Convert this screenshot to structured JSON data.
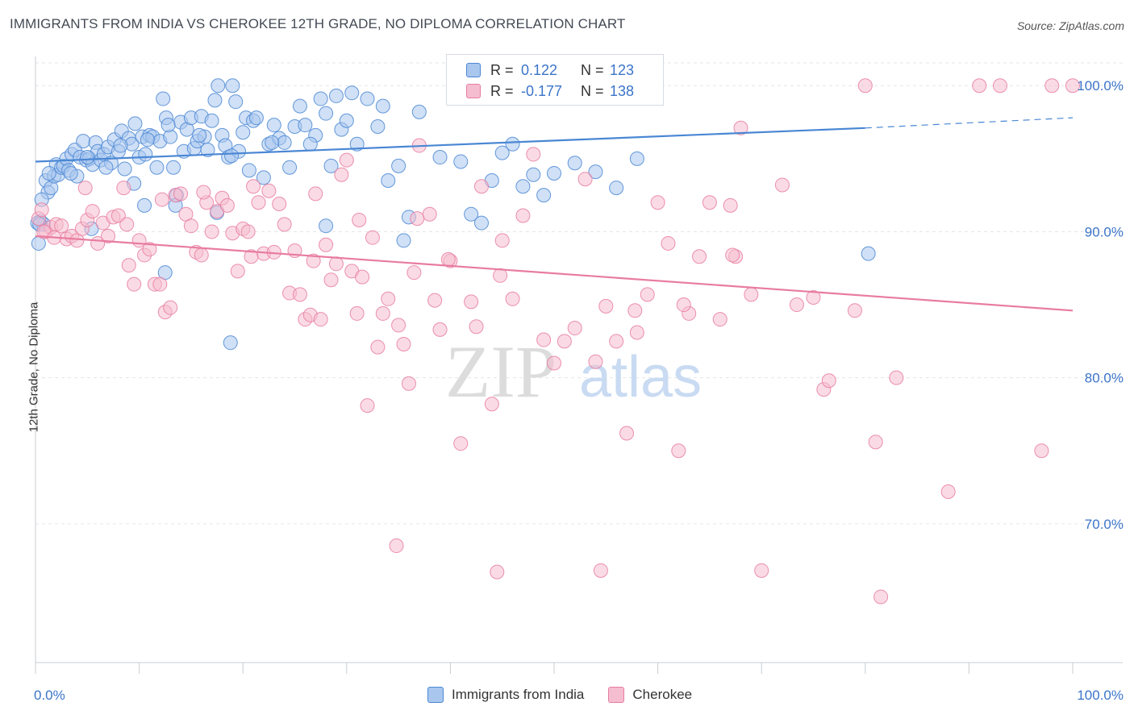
{
  "title": "IMMIGRANTS FROM INDIA VS CHEROKEE 12TH GRADE, NO DIPLOMA CORRELATION CHART",
  "source": "Source: ZipAtlas.com",
  "watermark": {
    "zip": "ZIP",
    "atlas": "atlas"
  },
  "legend": {
    "series": [
      {
        "name": "Immigrants from India",
        "r_label": "R =",
        "r_value": "0.122",
        "n_label": "N =",
        "n_value": "123",
        "color": "#4a87d4"
      },
      {
        "name": "Cherokee",
        "r_label": "R =",
        "r_value": "-0.177",
        "n_label": "N =",
        "n_value": "138",
        "color": "#e87ca0"
      }
    ]
  },
  "chart_data": {
    "type": "scatter",
    "title": "IMMIGRANTS FROM INDIA VS CHEROKEE 12TH GRADE, NO DIPLOMA CORRELATION CHART",
    "xlabel": "",
    "ylabel": "12th Grade, No Diploma",
    "x_tick_labels": [
      "0.0%",
      "100.0%"
    ],
    "y_tick_labels": [
      "100.0%",
      "90.0%",
      "80.0%",
      "70.0%"
    ],
    "y_ticks": [
      100,
      90,
      80,
      70
    ],
    "xlim": [
      0,
      100
    ],
    "ylim": [
      60.5,
      102
    ],
    "grid": true,
    "legend_position": "top-center",
    "series": [
      {
        "name": "Immigrants from India",
        "color": "#4a87d4",
        "fill": "#a9c7ee",
        "trend": {
          "x": [
            0,
            80
          ],
          "y": [
            94.8,
            97.1
          ],
          "dashed_to": [
            100,
            97.8
          ]
        },
        "points": [
          [
            0.3,
            89.2
          ],
          [
            0.5,
            90.7
          ],
          [
            0.8,
            90.5
          ],
          [
            1.0,
            93.5
          ],
          [
            1.2,
            92.7
          ],
          [
            1.5,
            93.0
          ],
          [
            1.8,
            93.8
          ],
          [
            2.0,
            94.6
          ],
          [
            2.2,
            93.9
          ],
          [
            2.5,
            94.4
          ],
          [
            2.7,
            94.5
          ],
          [
            3.0,
            95.0
          ],
          [
            3.2,
            94.2
          ],
          [
            3.5,
            95.3
          ],
          [
            3.8,
            95.6
          ],
          [
            4.0,
            93.8
          ],
          [
            4.3,
            95.1
          ],
          [
            4.6,
            96.2
          ],
          [
            4.9,
            94.9
          ],
          [
            5.2,
            95.0
          ],
          [
            5.5,
            94.6
          ],
          [
            5.8,
            96.1
          ],
          [
            6.0,
            95.5
          ],
          [
            6.3,
            94.9
          ],
          [
            6.6,
            95.3
          ],
          [
            7.0,
            95.8
          ],
          [
            7.3,
            94.7
          ],
          [
            7.6,
            96.3
          ],
          [
            8.0,
            95.5
          ],
          [
            8.3,
            96.9
          ],
          [
            8.6,
            94.3
          ],
          [
            9.0,
            96.4
          ],
          [
            9.3,
            96.0
          ],
          [
            9.6,
            97.4
          ],
          [
            10.0,
            95.1
          ],
          [
            10.3,
            96.5
          ],
          [
            10.6,
            95.3
          ],
          [
            11.0,
            96.6
          ],
          [
            11.3,
            96.5
          ],
          [
            11.7,
            94.4
          ],
          [
            12.0,
            96.2
          ],
          [
            12.3,
            99.1
          ],
          [
            12.6,
            97.8
          ],
          [
            13.0,
            96.5
          ],
          [
            13.3,
            94.4
          ],
          [
            13.6,
            92.5
          ],
          [
            14.0,
            97.5
          ],
          [
            14.3,
            95.5
          ],
          [
            14.6,
            97.0
          ],
          [
            15.0,
            97.8
          ],
          [
            15.3,
            95.7
          ],
          [
            15.6,
            96.2
          ],
          [
            16.0,
            97.9
          ],
          [
            16.3,
            96.5
          ],
          [
            16.6,
            95.6
          ],
          [
            17.0,
            97.6
          ],
          [
            17.3,
            99.0
          ],
          [
            17.6,
            100.0
          ],
          [
            18.0,
            96.6
          ],
          [
            18.3,
            95.9
          ],
          [
            18.6,
            95.1
          ],
          [
            19.0,
            100.0
          ],
          [
            19.3,
            98.9
          ],
          [
            19.6,
            95.5
          ],
          [
            20.0,
            96.8
          ],
          [
            20.3,
            97.8
          ],
          [
            20.6,
            94.2
          ],
          [
            21.0,
            97.6
          ],
          [
            21.3,
            97.8
          ],
          [
            22.0,
            93.7
          ],
          [
            22.5,
            96.0
          ],
          [
            23.0,
            97.3
          ],
          [
            23.5,
            96.4
          ],
          [
            24.0,
            96.1
          ],
          [
            24.5,
            94.4
          ],
          [
            25.0,
            97.2
          ],
          [
            25.5,
            98.6
          ],
          [
            26.0,
            97.3
          ],
          [
            27.0,
            96.6
          ],
          [
            27.5,
            99.1
          ],
          [
            28.0,
            98.1
          ],
          [
            28.5,
            94.5
          ],
          [
            29.0,
            99.3
          ],
          [
            29.5,
            97.0
          ],
          [
            30.0,
            97.6
          ],
          [
            30.5,
            99.5
          ],
          [
            31.0,
            96.0
          ],
          [
            32.0,
            99.1
          ],
          [
            33.0,
            97.2
          ],
          [
            33.5,
            98.6
          ],
          [
            34.0,
            93.5
          ],
          [
            35.0,
            94.5
          ],
          [
            35.5,
            89.4
          ],
          [
            36.0,
            91.0
          ],
          [
            37.0,
            98.2
          ],
          [
            39.0,
            95.1
          ],
          [
            41.0,
            94.8
          ],
          [
            42.0,
            91.2
          ],
          [
            43.0,
            90.6
          ],
          [
            44.0,
            93.5
          ],
          [
            45.0,
            95.4
          ],
          [
            46.0,
            96.0
          ],
          [
            47.0,
            93.1
          ],
          [
            48.0,
            93.9
          ],
          [
            49.0,
            92.5
          ],
          [
            50.0,
            94.0
          ],
          [
            52.0,
            94.7
          ],
          [
            54.0,
            94.1
          ],
          [
            56.0,
            93.0
          ],
          [
            58.0,
            95.0
          ],
          [
            9.5,
            93.3
          ],
          [
            10.5,
            91.8
          ],
          [
            12.5,
            87.2
          ],
          [
            13.5,
            91.8
          ],
          [
            17.5,
            91.3
          ],
          [
            18.8,
            82.4
          ],
          [
            28.0,
            90.4
          ],
          [
            0.2,
            90.6
          ],
          [
            0.6,
            92.2
          ],
          [
            1.3,
            94.0
          ],
          [
            3.4,
            94.0
          ],
          [
            5.0,
            95.1
          ],
          [
            6.8,
            94.4
          ],
          [
            8.2,
            95.9
          ],
          [
            10.8,
            96.3
          ],
          [
            12.8,
            97.3
          ],
          [
            15.8,
            96.6
          ],
          [
            18.9,
            95.2
          ],
          [
            22.8,
            96.1
          ],
          [
            26.5,
            96.0
          ],
          [
            80.3,
            88.5
          ],
          [
            5.4,
            90.2
          ],
          [
            0.4,
            90.5
          ]
        ]
      },
      {
        "name": "Cherokee",
        "color": "#e87ca0",
        "fill": "#f5bdd0",
        "trend": {
          "x": [
            0,
            100
          ],
          "y": [
            89.7,
            84.6
          ]
        },
        "points": [
          [
            0.3,
            90.9
          ],
          [
            0.6,
            91.5
          ],
          [
            1.0,
            90.0
          ],
          [
            1.5,
            90.3
          ],
          [
            2.0,
            90.5
          ],
          [
            2.5,
            90.4
          ],
          [
            3.0,
            89.5
          ],
          [
            3.5,
            89.7
          ],
          [
            4.0,
            89.4
          ],
          [
            4.5,
            90.2
          ],
          [
            5.0,
            90.8
          ],
          [
            5.5,
            91.4
          ],
          [
            6.0,
            89.2
          ],
          [
            6.5,
            90.6
          ],
          [
            7.0,
            89.7
          ],
          [
            7.5,
            91.0
          ],
          [
            8.0,
            91.1
          ],
          [
            8.5,
            93.0
          ],
          [
            9.0,
            87.7
          ],
          [
            9.5,
            86.4
          ],
          [
            10.0,
            89.4
          ],
          [
            10.5,
            88.4
          ],
          [
            11.0,
            88.8
          ],
          [
            11.5,
            86.4
          ],
          [
            12.0,
            86.4
          ],
          [
            12.5,
            84.5
          ],
          [
            13.0,
            84.8
          ],
          [
            13.5,
            92.5
          ],
          [
            14.0,
            92.6
          ],
          [
            14.5,
            91.2
          ],
          [
            15.0,
            90.4
          ],
          [
            15.5,
            88.6
          ],
          [
            16.0,
            88.4
          ],
          [
            16.5,
            92.0
          ],
          [
            17.0,
            90.0
          ],
          [
            17.5,
            91.4
          ],
          [
            18.0,
            92.3
          ],
          [
            18.5,
            91.8
          ],
          [
            19.0,
            89.9
          ],
          [
            19.5,
            87.3
          ],
          [
            20.0,
            90.2
          ],
          [
            20.5,
            90.0
          ],
          [
            21.0,
            93.1
          ],
          [
            21.5,
            92.0
          ],
          [
            22.0,
            88.5
          ],
          [
            22.5,
            92.8
          ],
          [
            23.0,
            88.6
          ],
          [
            23.5,
            91.9
          ],
          [
            24.0,
            90.5
          ],
          [
            24.5,
            85.8
          ],
          [
            25.0,
            88.7
          ],
          [
            25.5,
            85.7
          ],
          [
            26.0,
            84.0
          ],
          [
            26.5,
            84.3
          ],
          [
            27.0,
            92.6
          ],
          [
            27.5,
            84.0
          ],
          [
            28.0,
            89.1
          ],
          [
            28.5,
            86.7
          ],
          [
            29.0,
            87.8
          ],
          [
            29.5,
            93.9
          ],
          [
            30.0,
            94.9
          ],
          [
            30.5,
            87.3
          ],
          [
            31.0,
            84.4
          ],
          [
            31.5,
            86.9
          ],
          [
            32.0,
            78.1
          ],
          [
            32.5,
            89.6
          ],
          [
            33.0,
            82.1
          ],
          [
            33.5,
            84.4
          ],
          [
            34.0,
            85.4
          ],
          [
            35.0,
            83.6
          ],
          [
            35.5,
            82.3
          ],
          [
            36.0,
            79.6
          ],
          [
            36.5,
            87.2
          ],
          [
            37.0,
            95.9
          ],
          [
            38.0,
            91.2
          ],
          [
            38.5,
            85.3
          ],
          [
            39.0,
            83.3
          ],
          [
            40.0,
            88.0
          ],
          [
            41.0,
            75.5
          ],
          [
            42.0,
            85.2
          ],
          [
            42.5,
            83.5
          ],
          [
            43.0,
            93.1
          ],
          [
            44.0,
            78.2
          ],
          [
            45.0,
            89.4
          ],
          [
            46.0,
            85.4
          ],
          [
            47.0,
            91.1
          ],
          [
            48.0,
            95.3
          ],
          [
            49.0,
            82.6
          ],
          [
            50.0,
            81.0
          ],
          [
            51.0,
            82.5
          ],
          [
            52.0,
            83.4
          ],
          [
            53.0,
            93.6
          ],
          [
            54.0,
            81.1
          ],
          [
            54.5,
            66.8
          ],
          [
            55.0,
            84.9
          ],
          [
            56.0,
            82.5
          ],
          [
            57.0,
            76.2
          ],
          [
            58.0,
            83.1
          ],
          [
            59.0,
            85.7
          ],
          [
            60.0,
            92.0
          ],
          [
            61.0,
            89.2
          ],
          [
            62.0,
            75.0
          ],
          [
            63.0,
            84.4
          ],
          [
            64.0,
            88.3
          ],
          [
            65.0,
            92.0
          ],
          [
            66.0,
            84.0
          ],
          [
            67.0,
            91.8
          ],
          [
            68.0,
            97.1
          ],
          [
            69.0,
            85.7
          ],
          [
            70.0,
            66.8
          ],
          [
            72.0,
            93.2
          ],
          [
            75.0,
            85.5
          ],
          [
            76.0,
            79.2
          ],
          [
            76.5,
            79.8
          ],
          [
            79.0,
            84.6
          ],
          [
            80.0,
            100.0
          ],
          [
            81.0,
            75.6
          ],
          [
            81.5,
            65.0
          ],
          [
            88.0,
            72.2
          ],
          [
            91.0,
            100.0
          ],
          [
            93.0,
            100.0
          ],
          [
            97.0,
            75.0
          ],
          [
            98.0,
            100.0
          ],
          [
            100.0,
            100.0
          ],
          [
            34.8,
            68.5
          ],
          [
            44.5,
            66.7
          ],
          [
            50.2,
            100.0
          ],
          [
            53.0,
            100.0
          ],
          [
            62.5,
            85.0
          ],
          [
            67.5,
            88.3
          ],
          [
            0.8,
            90.0
          ],
          [
            1.8,
            89.6
          ],
          [
            4.8,
            93.0
          ],
          [
            8.8,
            90.5
          ],
          [
            12.2,
            92.2
          ],
          [
            16.2,
            92.7
          ],
          [
            20.8,
            88.3
          ],
          [
            26.8,
            88.0
          ],
          [
            31.2,
            90.8
          ],
          [
            36.8,
            90.9
          ],
          [
            39.8,
            88.1
          ],
          [
            44.8,
            87.0
          ],
          [
            57.8,
            84.6
          ],
          [
            67.2,
            88.4
          ],
          [
            73.4,
            85.0
          ],
          [
            83.0,
            80.0
          ]
        ]
      }
    ]
  }
}
